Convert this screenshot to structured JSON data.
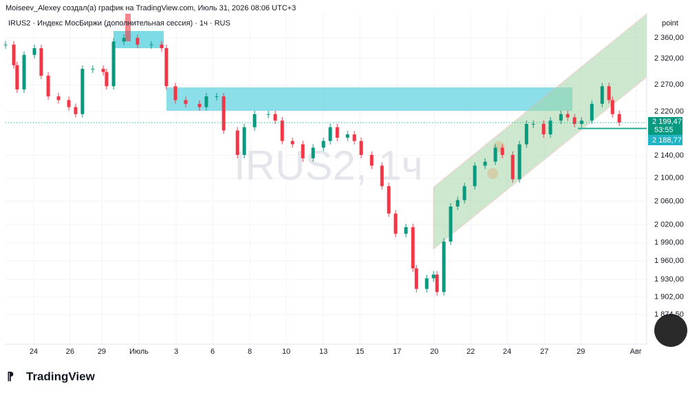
{
  "header": {
    "author_line": "Moiseev_Alexey создал(а) график на TradingView.com, Июль 31, 2026 08:06 UTC+3",
    "logo": "TradingView"
  },
  "chart_data": {
    "type": "candle",
    "title": "IRUS2 · Индекс МосБиржи (дополнительная сессия) · 1ч · RUS",
    "watermark": "IRUS2, 1ч",
    "y_axis_unit": "point",
    "log_scale": true,
    "grid": true,
    "up_color": "#089981",
    "down_color": "#f23645",
    "xlim": [
      -1.53,
      33.3
    ],
    "ylim": [
      2408,
      1866
    ],
    "xticks": [
      {
        "value": 0,
        "label": "24"
      },
      {
        "value": 1.98,
        "label": "26"
      },
      {
        "value": 3.7,
        "label": "29"
      },
      {
        "value": 5.72,
        "label": "Июль"
      },
      {
        "value": 7.74,
        "label": "3"
      },
      {
        "value": 9.72,
        "label": "6"
      },
      {
        "value": 11.74,
        "label": "8"
      },
      {
        "value": 13.72,
        "label": "10"
      },
      {
        "value": 15.74,
        "label": "13"
      },
      {
        "value": 17.72,
        "label": "15"
      },
      {
        "value": 19.74,
        "label": "17"
      },
      {
        "value": 21.76,
        "label": "20"
      },
      {
        "value": 23.74,
        "label": "22"
      },
      {
        "value": 25.72,
        "label": "24"
      },
      {
        "value": 27.74,
        "label": "27"
      },
      {
        "value": 29.72,
        "label": "29"
      },
      {
        "value": 32.71,
        "label": "Авг"
      }
    ],
    "yticks": [
      {
        "value": 2360,
        "label": "2 360,00"
      },
      {
        "value": 2320,
        "label": "2 320,00"
      },
      {
        "value": 2270,
        "label": "2 270,00"
      },
      {
        "value": 2220,
        "label": "2 220,00"
      },
      {
        "value": 2140,
        "label": "2 140,00"
      },
      {
        "value": 2100,
        "label": "2 100,00"
      },
      {
        "value": 2060,
        "label": "2 060,00"
      },
      {
        "value": 2020,
        "label": "2 020,00"
      },
      {
        "value": 1990,
        "label": "1 990,00"
      },
      {
        "value": 1960,
        "label": "1 960,00"
      },
      {
        "value": 1930,
        "label": "1 930,00"
      },
      {
        "value": 1902,
        "label": "1 902,00"
      },
      {
        "value": 1874.5,
        "label": "1 874,50"
      }
    ],
    "series": [
      {
        "name": "IRUS2",
        "x": [
          -1.53,
          -1.08,
          -0.9,
          -0.52,
          0.04,
          0.41,
          0.79,
          1.35,
          1.91,
          2.28,
          2.65,
          3.21,
          3.78,
          3.96,
          4.34,
          4.9,
          5.64,
          6.39,
          6.95,
          7.21,
          7.7,
          8.26,
          9.01,
          9.38,
          9.94,
          10.32,
          11.07,
          11.44,
          12.0,
          12.75,
          13.12,
          13.5,
          14.06,
          14.62,
          15.18,
          15.74,
          16.11,
          16.49,
          17.05,
          17.42,
          17.79,
          18.36,
          18.92,
          19.29,
          19.66,
          20.22,
          20.6,
          20.79,
          21.35,
          21.72,
          21.91,
          22.28,
          22.65,
          23.03,
          23.4,
          23.96,
          24.52,
          25.08,
          25.46,
          26.02,
          26.39,
          26.77,
          27.14,
          27.7,
          28.07,
          28.64,
          29.01,
          29.38,
          29.76,
          30.32,
          30.88,
          31.25,
          31.44,
          31.81
        ],
        "values": [
          2347,
          2307,
          2261,
          2327,
          2340,
          2287,
          2248,
          2241,
          2228,
          2215,
          2300,
          2300,
          2294,
          2267,
          2353,
          2360,
          2347,
          2347,
          2340,
          2267,
          2241,
          2234,
          2228,
          2248,
          2248,
          2185,
          2141,
          2191,
          2215,
          2215,
          2203,
          2166,
          2160,
          2135,
          2154,
          2166,
          2191,
          2172,
          2178,
          2166,
          2141,
          2122,
          2086,
          2039,
          2005,
          2016,
          1948,
          1915,
          1932,
          1938,
          1910,
          1992,
          2051,
          2062,
          2086,
          2122,
          2129,
          2154,
          2141,
          2098,
          2160,
          2197,
          2197,
          2178,
          2203,
          2215,
          2209,
          2197,
          2203,
          2234,
          2267,
          2241,
          2215,
          2199.47
        ]
      }
    ],
    "last_price": {
      "value": 2199.47,
      "label": "2 199,47"
    },
    "countdown": "53:55",
    "level": {
      "value": 2188.77,
      "label": "2 188,77"
    }
  }
}
